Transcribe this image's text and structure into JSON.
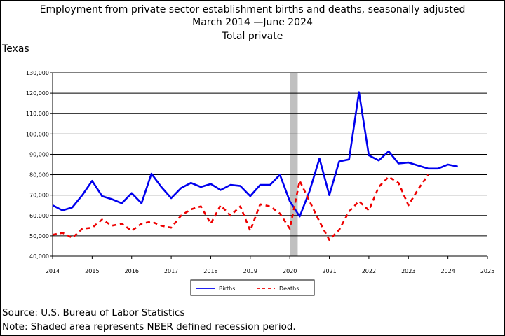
{
  "title": {
    "line1": "Employment from private sector establishment births and deaths, seasonally adjusted",
    "line2": "March 2014 —June 2024",
    "line3": "Total private"
  },
  "region_label": "Texas",
  "source": "Source: U.S. Bureau of Labor Statistics",
  "note": "Note: Shaded area represents NBER defined recession period.",
  "chart_data": {
    "type": "line",
    "title": "Employment from private sector establishment births and deaths, seasonally adjusted",
    "xlabel": "",
    "ylabel": "",
    "xlim": [
      2014,
      2025
    ],
    "ylim": [
      40000,
      130000
    ],
    "grid": true,
    "x_ticks": [
      "2014",
      "2015",
      "2016",
      "2017",
      "2018",
      "2019",
      "2020",
      "2021",
      "2022",
      "2023",
      "2024",
      "2025"
    ],
    "y_ticks": [
      "40,000",
      "50,000",
      "60,000",
      "70,000",
      "80,000",
      "90,000",
      "100,000",
      "110,000",
      "120,000",
      "130,000"
    ],
    "recession": {
      "start": 2020.0,
      "end": 2020.2,
      "color": "#c0c0c0"
    },
    "legend": {
      "placement": "bottom-center"
    },
    "series": [
      {
        "name": "Births",
        "color": "#0000ee",
        "style": "solid",
        "x": [
          2014.0,
          2014.25,
          2014.5,
          2014.75,
          2015.0,
          2015.25,
          2015.5,
          2015.75,
          2016.0,
          2016.25,
          2016.5,
          2016.75,
          2017.0,
          2017.25,
          2017.5,
          2017.75,
          2018.0,
          2018.25,
          2018.5,
          2018.75,
          2019.0,
          2019.25,
          2019.5,
          2019.75,
          2020.0,
          2020.25,
          2020.5,
          2020.75,
          2021.0,
          2021.25,
          2021.5,
          2021.75,
          2022.0,
          2022.25,
          2022.5,
          2022.75,
          2023.0,
          2023.25,
          2023.5,
          2023.75,
          2024.0,
          2024.25
        ],
        "values": [
          65000,
          62500,
          64000,
          70000,
          77000,
          69500,
          68000,
          66000,
          71000,
          66000,
          80500,
          74000,
          68500,
          73500,
          76000,
          74000,
          75500,
          72500,
          75000,
          74500,
          69500,
          75000,
          75000,
          80000,
          67000,
          59500,
          72000,
          88000,
          70000,
          86500,
          87500,
          120500,
          89500,
          87000,
          91500,
          85500,
          86000,
          84500,
          83000,
          83000,
          85000,
          84000
        ]
      },
      {
        "name": "Deaths",
        "color": "#ee0000",
        "style": "dashed",
        "x": [
          2014.0,
          2014.25,
          2014.5,
          2014.75,
          2015.0,
          2015.25,
          2015.5,
          2015.75,
          2016.0,
          2016.25,
          2016.5,
          2016.75,
          2017.0,
          2017.25,
          2017.5,
          2017.75,
          2018.0,
          2018.25,
          2018.5,
          2018.75,
          2019.0,
          2019.25,
          2019.5,
          2019.75,
          2020.0,
          2020.25,
          2020.5,
          2020.75,
          2021.0,
          2021.25,
          2021.5,
          2021.75,
          2022.0,
          2022.25,
          2022.5,
          2022.75,
          2023.0,
          2023.25,
          2023.5
        ],
        "values": [
          50500,
          51500,
          49000,
          53500,
          54000,
          58000,
          55000,
          56000,
          52500,
          56000,
          57000,
          55000,
          54000,
          60000,
          63000,
          64500,
          56000,
          65000,
          60000,
          64500,
          52500,
          65500,
          64500,
          61000,
          53500,
          77000,
          67000,
          57000,
          48000,
          53000,
          62000,
          67000,
          62500,
          74000,
          79000,
          76000,
          65000,
          73000,
          80000
        ]
      }
    ]
  }
}
